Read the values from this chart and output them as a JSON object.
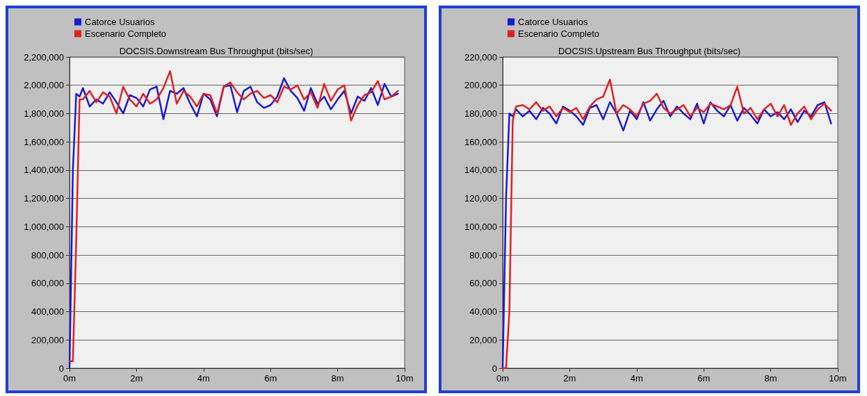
{
  "chart_data": [
    {
      "type": "line",
      "title": "DOCSIS.Downstream Bus Throughput (bits/sec)",
      "legend": "top",
      "grid": "y",
      "marker": "none",
      "line_style": "solid",
      "x": [
        0,
        0.1,
        0.2,
        0.3,
        0.4,
        0.6,
        0.8,
        1,
        1.2,
        1.4,
        1.6,
        1.8,
        2,
        2.2,
        2.4,
        2.6,
        2.8,
        3,
        3.2,
        3.4,
        3.6,
        3.8,
        4,
        4.2,
        4.4,
        4.6,
        4.8,
        5,
        5.2,
        5.4,
        5.6,
        5.8,
        6,
        6.2,
        6.4,
        6.6,
        6.8,
        7,
        7.2,
        7.4,
        7.6,
        7.8,
        8,
        8.2,
        8.4,
        8.6,
        8.8,
        9,
        9.2,
        9.4,
        9.6,
        9.8
      ],
      "xlim": [
        0,
        10
      ],
      "xticks": [
        {
          "value": 0,
          "label": "0m"
        },
        {
          "value": 2,
          "label": "2m"
        },
        {
          "value": 4,
          "label": "4m"
        },
        {
          "value": 6,
          "label": "6m"
        },
        {
          "value": 8,
          "label": "8m"
        },
        {
          "value": 10,
          "label": "10m"
        }
      ],
      "ylim": [
        0,
        2200000
      ],
      "yticks": [
        0,
        {
          "value": 200000,
          "label": "200,000"
        },
        {
          "value": 400000,
          "label": "400,000"
        },
        {
          "value": 600000,
          "label": "600,000"
        },
        {
          "value": 800000,
          "label": "800,000"
        },
        {
          "value": 1000000,
          "label": "1,000,000"
        },
        {
          "value": 1200000,
          "label": "1,200,000"
        },
        {
          "value": 1400000,
          "label": "1,400,000"
        },
        {
          "value": 1600000,
          "label": "1,600,000"
        },
        {
          "value": 1800000,
          "label": "1,800,000"
        },
        {
          "value": 2000000,
          "label": "2,000,000"
        },
        {
          "value": 2200000,
          "label": "2,200,000"
        }
      ],
      "series": [
        {
          "name": "Catorce Usuarios",
          "color": "#1a1ad0",
          "values": [
            0,
            1400000,
            1940000,
            1920000,
            1980000,
            1850000,
            1900000,
            1870000,
            1950000,
            1880000,
            1800000,
            1930000,
            1910000,
            1850000,
            1970000,
            1990000,
            1760000,
            1960000,
            1940000,
            1980000,
            1870000,
            1780000,
            1940000,
            1900000,
            1780000,
            1990000,
            2000000,
            1810000,
            1960000,
            1990000,
            1880000,
            1840000,
            1860000,
            1920000,
            2050000,
            1960000,
            1910000,
            1820000,
            1980000,
            1870000,
            1920000,
            1830000,
            1900000,
            1960000,
            1800000,
            1920000,
            1890000,
            1980000,
            1860000,
            2010000,
            1920000,
            1940000
          ]
        },
        {
          "name": "Escenario Completo",
          "color": "#e02020",
          "values": [
            50000,
            50000,
            900000,
            1900000,
            1900000,
            1960000,
            1880000,
            1950000,
            1920000,
            1800000,
            1990000,
            1900000,
            1850000,
            1940000,
            1870000,
            1900000,
            1980000,
            2100000,
            1870000,
            1960000,
            1920000,
            1850000,
            1940000,
            1930000,
            1800000,
            1990000,
            2020000,
            1950000,
            1900000,
            1940000,
            1960000,
            1910000,
            1930000,
            1880000,
            1990000,
            1970000,
            2000000,
            1900000,
            1950000,
            1840000,
            2010000,
            1890000,
            1970000,
            2000000,
            1750000,
            1860000,
            1930000,
            1950000,
            2030000,
            1900000,
            1920000,
            1960000
          ]
        }
      ]
    },
    {
      "type": "line",
      "title": "DOCSIS.Upstream Bus Throughput (bits/sec)",
      "legend": "top",
      "grid": "y",
      "marker": "none",
      "line_style": "solid",
      "x": [
        0,
        0.1,
        0.2,
        0.3,
        0.4,
        0.6,
        0.8,
        1,
        1.2,
        1.4,
        1.6,
        1.8,
        2,
        2.2,
        2.4,
        2.6,
        2.8,
        3,
        3.2,
        3.4,
        3.6,
        3.8,
        4,
        4.2,
        4.4,
        4.6,
        4.8,
        5,
        5.2,
        5.4,
        5.6,
        5.8,
        6,
        6.2,
        6.4,
        6.6,
        6.8,
        7,
        7.2,
        7.4,
        7.6,
        7.8,
        8,
        8.2,
        8.4,
        8.6,
        8.8,
        9,
        9.2,
        9.4,
        9.6,
        9.8
      ],
      "xlim": [
        0,
        10
      ],
      "xticks": [
        {
          "value": 0,
          "label": "0m"
        },
        {
          "value": 2,
          "label": "2m"
        },
        {
          "value": 4,
          "label": "4m"
        },
        {
          "value": 6,
          "label": "6m"
        },
        {
          "value": 8,
          "label": "8m"
        },
        {
          "value": 10,
          "label": "10m"
        }
      ],
      "ylim": [
        0,
        220000
      ],
      "yticks": [
        0,
        {
          "value": 20000,
          "label": "20,000"
        },
        {
          "value": 40000,
          "label": "40,000"
        },
        {
          "value": 60000,
          "label": "60,000"
        },
        {
          "value": 80000,
          "label": "80,000"
        },
        {
          "value": 100000,
          "label": "100,000"
        },
        {
          "value": 120000,
          "label": "120,000"
        },
        {
          "value": 140000,
          "label": "140,000"
        },
        {
          "value": 160000,
          "label": "160,000"
        },
        {
          "value": 180000,
          "label": "180,000"
        },
        {
          "value": 200000,
          "label": "200,000"
        },
        {
          "value": 220000,
          "label": "220,000"
        }
      ],
      "series": [
        {
          "name": "Catorce Usuarios",
          "color": "#1a1ad0",
          "values": [
            0,
            120000,
            180000,
            178000,
            183000,
            178000,
            182000,
            176000,
            184000,
            180000,
            173000,
            185000,
            182000,
            178000,
            172000,
            184000,
            186000,
            176000,
            188000,
            180000,
            168000,
            182000,
            176000,
            188000,
            175000,
            183000,
            189000,
            178000,
            185000,
            180000,
            176000,
            187000,
            173000,
            188000,
            182000,
            178000,
            186000,
            175000,
            184000,
            179000,
            173000,
            183000,
            178000,
            181000,
            176000,
            183000,
            174000,
            182000,
            178000,
            186000,
            188000,
            173000
          ]
        },
        {
          "name": "Escenario Completo",
          "color": "#e02020",
          "values": [
            0,
            0,
            40000,
            175000,
            185000,
            186000,
            183000,
            188000,
            182000,
            185000,
            178000,
            184000,
            181000,
            184000,
            176000,
            185000,
            190000,
            192000,
            204000,
            180000,
            186000,
            183000,
            178000,
            187000,
            189000,
            194000,
            184000,
            180000,
            183000,
            186000,
            178000,
            184000,
            181000,
            187000,
            185000,
            183000,
            186000,
            199000,
            180000,
            184000,
            176000,
            183000,
            187000,
            178000,
            186000,
            172000,
            180000,
            185000,
            176000,
            183000,
            187000,
            182000
          ]
        }
      ]
    }
  ]
}
